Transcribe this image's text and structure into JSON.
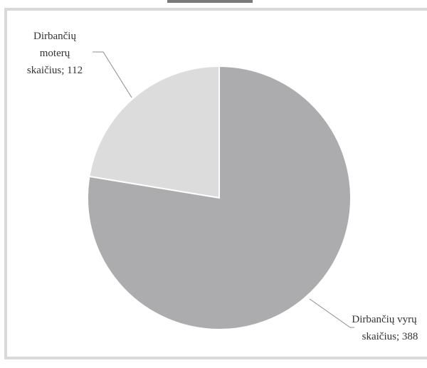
{
  "chart_data": {
    "type": "pie",
    "title": "",
    "slices": [
      {
        "label": "Dirbančių moterų skaičius",
        "value": 112,
        "color": "#dcdcdd",
        "label_lines": [
          "Dirbančių",
          "moterų",
          "skaičius; 112"
        ]
      },
      {
        "label": "Dirbančių vyrų skaičius",
        "value": 388,
        "color": "#acacae",
        "label_lines": [
          "Dirbančių vyrų",
          "skaičius; 388"
        ]
      }
    ],
    "legend": "none"
  },
  "colors": {
    "frame": "#d9d9d9",
    "leader": "#8c8c8c",
    "slice_edge": "#ffffff"
  }
}
